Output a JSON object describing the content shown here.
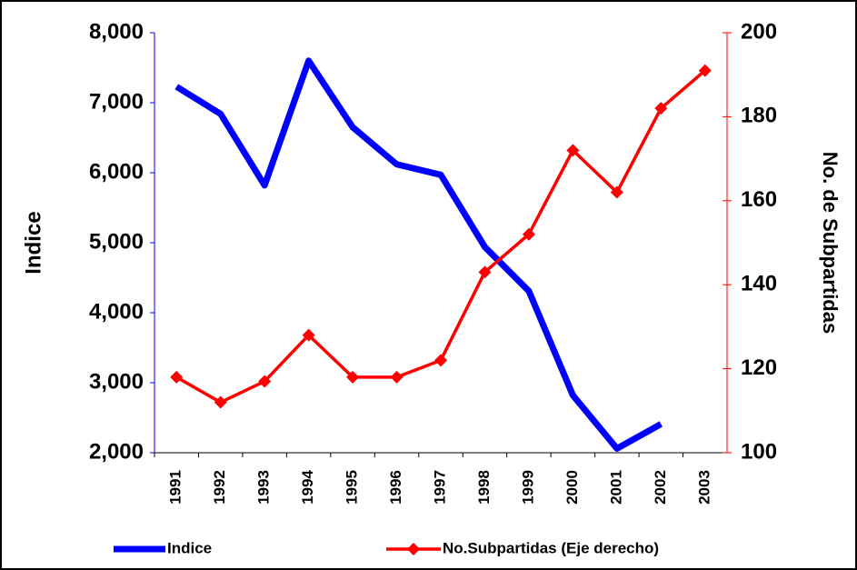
{
  "chart_data": {
    "type": "line",
    "categories": [
      "1991",
      "1992",
      "1993",
      "1994",
      "1995",
      "1996",
      "1997",
      "1998",
      "1999",
      "2000",
      "2001",
      "2002",
      "2003"
    ],
    "series": [
      {
        "name": "Indice",
        "color": "#0000ff",
        "axis": "y",
        "values": [
          7230,
          6840,
          5820,
          7600,
          6650,
          6120,
          5970,
          4940,
          4310,
          2820,
          2060,
          2410,
          null
        ]
      },
      {
        "name": "No.Subpartidas (Eje derecho)",
        "color": "#ff0000",
        "axis": "y2",
        "values": [
          118,
          112,
          117,
          128,
          118,
          118,
          122,
          143,
          152,
          172,
          162,
          182,
          191
        ]
      }
    ],
    "ylabel": "Indice",
    "y2label": "No. de Subpartidas",
    "ylim": [
      2000,
      8000
    ],
    "yticks": [
      {
        "value": 2000,
        "label": "2,000"
      },
      {
        "value": 3000,
        "label": "3,000"
      },
      {
        "value": 4000,
        "label": "4,000"
      },
      {
        "value": 5000,
        "label": "5,000"
      },
      {
        "value": 6000,
        "label": "6,000"
      },
      {
        "value": 7000,
        "label": "7,000"
      },
      {
        "value": 8000,
        "label": "8,000"
      }
    ],
    "y2lim": [
      100,
      200
    ],
    "y2ticks": [
      100,
      120,
      140,
      160,
      180,
      200
    ],
    "legend": "bottom"
  }
}
